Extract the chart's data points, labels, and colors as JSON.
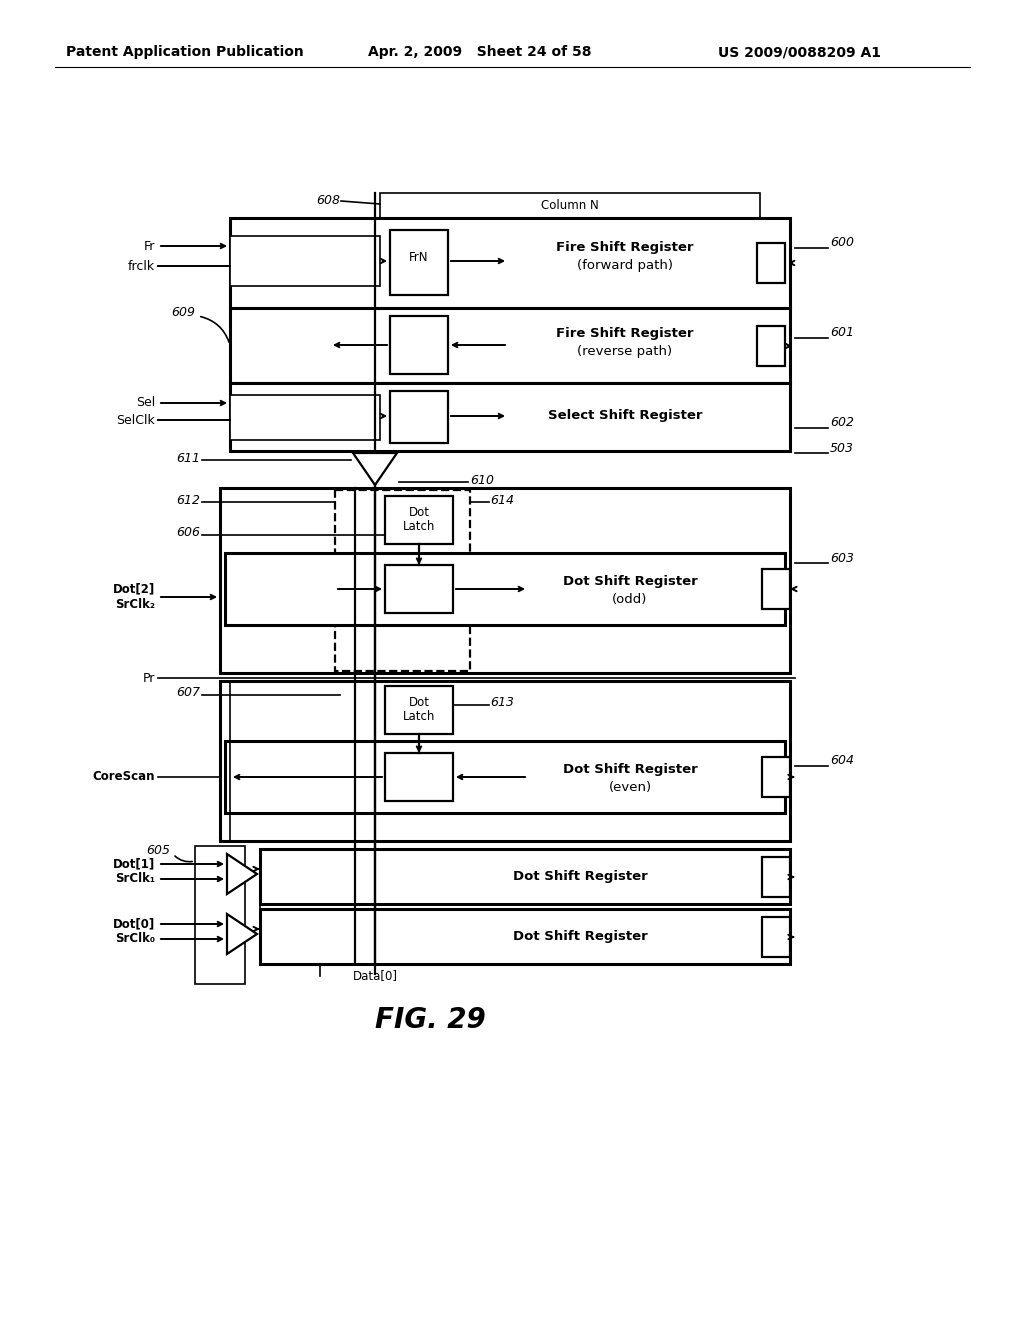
{
  "bg_color": "#ffffff",
  "header_left": "Patent Application Publication",
  "header_mid": "Apr. 2, 2009   Sheet 24 of 58",
  "header_right": "US 2009/0088209 A1",
  "figure_label": "FIG. 29"
}
